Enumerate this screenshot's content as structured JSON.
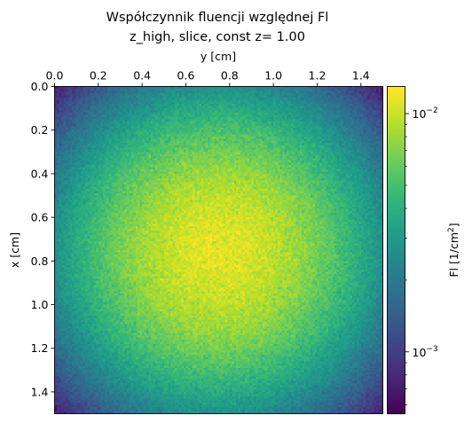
{
  "chart_data": {
    "type": "heatmap",
    "title_line1": "Współczynnik fluencji względnej Fl",
    "title_line2": "z_high, slice, const z= 1.00",
    "xlabel": "y [cm]",
    "ylabel": "x [cm]",
    "x_axis_position": "top",
    "xlim": [
      0.0,
      1.5
    ],
    "ylim": [
      1.5,
      0.0
    ],
    "x_ticks": [
      "0.0",
      "0.2",
      "0.4",
      "0.6",
      "0.8",
      "1.0",
      "1.2",
      "1.4"
    ],
    "x_tick_values": [
      0.0,
      0.2,
      0.4,
      0.6,
      0.8,
      1.0,
      1.2,
      1.4
    ],
    "y_ticks": [
      "0.0",
      "0.2",
      "0.4",
      "0.6",
      "0.8",
      "1.0",
      "1.2",
      "1.4"
    ],
    "y_tick_values": [
      0.0,
      0.2,
      0.4,
      0.6,
      0.8,
      1.0,
      1.2,
      1.4
    ],
    "grid": false,
    "colormap": "viridis",
    "field_shape": "radial, peak near x=0.75 cm, y=0.75 cm, decreasing toward edges and corners",
    "peak_value": 0.0115,
    "corner_value": 0.0007,
    "colorbar": {
      "label": "Fl [1/cm",
      "label_sup": "2",
      "label_end": "]",
      "scale": "log",
      "range": [
        0.00055,
        0.013
      ],
      "major_ticks": [
        {
          "value": 0.01,
          "mantissa": "10",
          "exponent": "−2"
        },
        {
          "value": 0.001,
          "mantissa": "10",
          "exponent": "−3"
        }
      ],
      "minor_ticks": [
        0.0006,
        0.0007,
        0.0008,
        0.0009,
        0.002,
        0.003,
        0.004,
        0.005,
        0.006,
        0.007,
        0.008,
        0.009
      ]
    }
  }
}
